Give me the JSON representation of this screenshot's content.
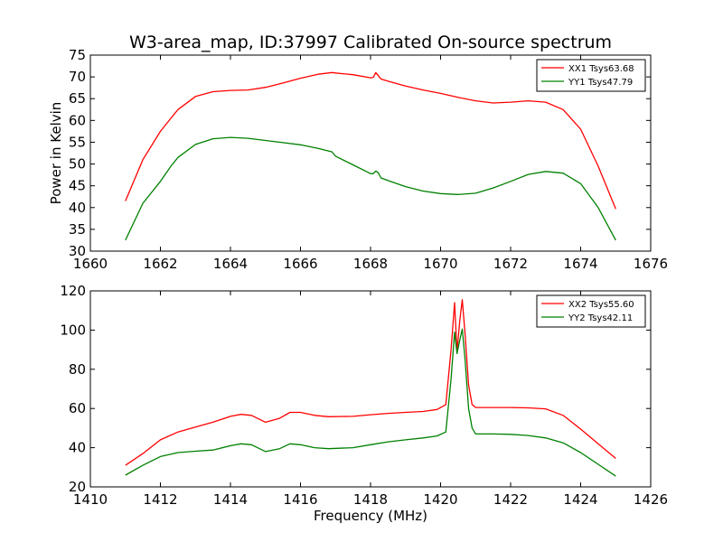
{
  "title": "W3-area_map, ID:37997 Calibrated On-source spectrum",
  "colors": {
    "red": "#ff0000",
    "green": "#008000"
  },
  "chart_data": [
    {
      "type": "line",
      "title": "W3-area_map, ID:37997 Calibrated On-source spectrum",
      "xlabel": "",
      "ylabel": "Power in Kelvin",
      "xlim": [
        1660,
        1676
      ],
      "ylim": [
        30,
        75
      ],
      "xticks": [
        "1660",
        "1662",
        "1664",
        "1666",
        "1668",
        "1670",
        "1672",
        "1674",
        "1676"
      ],
      "yticks": [
        "30",
        "35",
        "40",
        "45",
        "50",
        "55",
        "60",
        "65",
        "70",
        "75"
      ],
      "legend_position": "top-right",
      "grid": false,
      "series": [
        {
          "name": "XX1 Tsys63.68",
          "color": "#ff0000",
          "x": [
            1661.0,
            1661.5,
            1662.0,
            1662.3,
            1662.5,
            1663.0,
            1663.5,
            1664.0,
            1664.5,
            1665.0,
            1665.5,
            1666.0,
            1666.5,
            1666.9,
            1667.0,
            1667.5,
            1668.0,
            1668.08,
            1668.15,
            1668.22,
            1668.3,
            1668.5,
            1669.0,
            1669.5,
            1670.0,
            1670.5,
            1671.0,
            1671.5,
            1672.0,
            1672.5,
            1673.0,
            1673.5,
            1674.0,
            1674.5,
            1675.0
          ],
          "y": [
            41.5,
            51.0,
            57.5,
            60.5,
            62.5,
            65.5,
            66.6,
            66.9,
            67.0,
            67.6,
            68.6,
            69.7,
            70.6,
            71.0,
            70.9,
            70.5,
            69.8,
            69.9,
            71.0,
            70.3,
            69.5,
            69.0,
            67.9,
            67.0,
            66.2,
            65.3,
            64.5,
            64.0,
            64.2,
            64.5,
            64.2,
            62.5,
            58.0,
            49.5,
            39.7
          ]
        },
        {
          "name": "YY1 Tsys47.79",
          "color": "#008000",
          "x": [
            1661.0,
            1661.5,
            1662.0,
            1662.3,
            1662.5,
            1663.0,
            1663.5,
            1664.0,
            1664.5,
            1665.0,
            1665.5,
            1666.0,
            1666.5,
            1666.9,
            1667.0,
            1667.5,
            1668.0,
            1668.08,
            1668.15,
            1668.22,
            1668.3,
            1668.5,
            1669.0,
            1669.5,
            1670.0,
            1670.5,
            1671.0,
            1671.5,
            1672.0,
            1672.5,
            1673.0,
            1673.5,
            1674.0,
            1674.5,
            1675.0
          ],
          "y": [
            32.5,
            41.0,
            46.0,
            49.5,
            51.5,
            54.5,
            55.8,
            56.1,
            55.9,
            55.4,
            54.9,
            54.4,
            53.6,
            52.8,
            51.8,
            49.8,
            47.8,
            47.8,
            48.4,
            48.0,
            46.8,
            46.2,
            44.8,
            43.8,
            43.2,
            43.0,
            43.3,
            44.5,
            46.0,
            47.6,
            48.3,
            47.9,
            45.5,
            40.0,
            32.5
          ]
        }
      ]
    },
    {
      "type": "line",
      "title": "",
      "xlabel": "Frequency (MHz)",
      "ylabel": "",
      "xlim": [
        1410,
        1426
      ],
      "ylim": [
        20,
        120
      ],
      "xticks": [
        "1410",
        "1412",
        "1414",
        "1416",
        "1418",
        "1420",
        "1422",
        "1424",
        "1426"
      ],
      "yticks": [
        "20",
        "40",
        "60",
        "80",
        "100",
        "120"
      ],
      "legend_position": "top-right",
      "grid": false,
      "series": [
        {
          "name": "XX2 Tsys55.60",
          "color": "#ff0000",
          "x": [
            1411.0,
            1411.5,
            1412.0,
            1412.5,
            1413.0,
            1413.5,
            1414.0,
            1414.3,
            1414.6,
            1415.0,
            1415.4,
            1415.7,
            1416.0,
            1416.4,
            1416.8,
            1417.5,
            1418.0,
            1418.5,
            1419.0,
            1419.5,
            1419.9,
            1420.15,
            1420.3,
            1420.4,
            1420.47,
            1420.55,
            1420.62,
            1420.7,
            1420.8,
            1420.9,
            1421.0,
            1421.5,
            1422.0,
            1422.5,
            1423.0,
            1423.5,
            1424.0,
            1424.5,
            1425.0
          ],
          "y": [
            31.0,
            37.0,
            44.0,
            48.0,
            50.5,
            53.0,
            56.0,
            57.0,
            56.5,
            53.0,
            55.0,
            58.0,
            58.0,
            56.5,
            55.8,
            56.0,
            56.8,
            57.5,
            58.0,
            58.5,
            59.5,
            62.0,
            90.0,
            114.0,
            89.0,
            105.0,
            115.5,
            98.0,
            72.0,
            62.0,
            60.5,
            60.5,
            60.5,
            60.3,
            59.8,
            56.5,
            49.5,
            42.0,
            34.5
          ]
        },
        {
          "name": "YY2 Tsys42.11",
          "color": "#008000",
          "x": [
            1411.0,
            1411.5,
            1412.0,
            1412.5,
            1413.0,
            1413.5,
            1414.0,
            1414.3,
            1414.6,
            1415.0,
            1415.4,
            1415.7,
            1416.0,
            1416.4,
            1416.8,
            1417.5,
            1418.0,
            1418.5,
            1419.0,
            1419.5,
            1419.9,
            1420.15,
            1420.3,
            1420.4,
            1420.47,
            1420.55,
            1420.62,
            1420.7,
            1420.8,
            1420.9,
            1421.0,
            1421.5,
            1422.0,
            1422.5,
            1423.0,
            1423.5,
            1424.0,
            1424.5,
            1425.0
          ],
          "y": [
            26.0,
            31.0,
            35.5,
            37.5,
            38.2,
            38.8,
            41.0,
            42.0,
            41.5,
            38.0,
            39.5,
            42.0,
            41.5,
            40.0,
            39.5,
            40.0,
            41.5,
            43.0,
            44.0,
            45.0,
            46.0,
            48.0,
            75.0,
            99.0,
            88.0,
            95.0,
            100.5,
            85.0,
            60.0,
            50.0,
            47.0,
            47.0,
            46.8,
            46.2,
            45.0,
            42.5,
            37.5,
            31.5,
            25.5
          ]
        }
      ]
    }
  ]
}
